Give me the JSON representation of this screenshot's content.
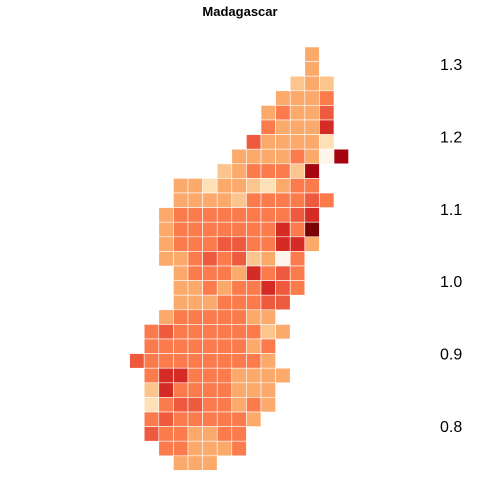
{
  "title": "Madagascar",
  "palette": [
    "#fff5eb",
    "#fee0b6",
    "#fdc58e",
    "#fca96c",
    "#fc7b4d",
    "#ed5a3e",
    "#d42b24",
    "#a5050f",
    "#7a0307"
  ],
  "legend": {
    "range": [
      0.75,
      1.35
    ],
    "ticks": [
      {
        "value": 0.8,
        "label": "0.8"
      },
      {
        "value": 0.9,
        "label": "0.9"
      },
      {
        "value": 1.0,
        "label": "1.0"
      },
      {
        "value": 1.1,
        "label": "1.1"
      },
      {
        "value": 1.2,
        "label": "1.2"
      },
      {
        "value": 1.3,
        "label": "1.3"
      }
    ]
  },
  "chart_data": {
    "type": "heatmap",
    "title": "Madagascar",
    "color_scale_range": [
      0.75,
      1.35
    ],
    "note": "rows listed north to south, each row as [first_column, level indices...]; level index k maps to palette[k]",
    "rows": [
      [
        11,
        3
      ],
      [
        11,
        3
      ],
      [
        10,
        2,
        3,
        2
      ],
      [
        9,
        3,
        3,
        3,
        4
      ],
      [
        8,
        3,
        4,
        3,
        3,
        5
      ],
      [
        8,
        4,
        3,
        3,
        3,
        6
      ],
      [
        7,
        5,
        3,
        3,
        3,
        3,
        1
      ],
      [
        6,
        3,
        3,
        3,
        3,
        4,
        3,
        0,
        7
      ],
      [
        5,
        2,
        3,
        4,
        4,
        4,
        2,
        7
      ],
      [
        2,
        3,
        3,
        1,
        3,
        3,
        2,
        1,
        3,
        4,
        4
      ],
      [
        2,
        3,
        3,
        3,
        3,
        2,
        4,
        4,
        4,
        4,
        5,
        4
      ],
      [
        1,
        3,
        4,
        4,
        4,
        4,
        4,
        4,
        4,
        4,
        5,
        6
      ],
      [
        1,
        3,
        4,
        4,
        4,
        4,
        4,
        4,
        4,
        6,
        4,
        8
      ],
      [
        1,
        3,
        4,
        4,
        4,
        5,
        5,
        4,
        4,
        6,
        6,
        3
      ],
      [
        1,
        3,
        3,
        4,
        5,
        4,
        5,
        2,
        3,
        0,
        4
      ],
      [
        2,
        3,
        4,
        4,
        4,
        3,
        6,
        4,
        5,
        4
      ],
      [
        2,
        3,
        3,
        4,
        3,
        4,
        4,
        6,
        5,
        4
      ],
      [
        2,
        3,
        3,
        3,
        4,
        4,
        4,
        5,
        5
      ],
      [
        1,
        3,
        4,
        4,
        4,
        4,
        4,
        3,
        3
      ],
      [
        0,
        4,
        5,
        4,
        4,
        4,
        4,
        4,
        4,
        2,
        3
      ],
      [
        0,
        4,
        4,
        4,
        4,
        4,
        4,
        4,
        3,
        4
      ],
      [
        -1,
        5,
        4,
        4,
        4,
        4,
        4,
        4,
        4,
        4,
        3
      ],
      [
        0,
        4,
        6,
        6,
        4,
        4,
        4,
        3,
        3,
        3,
        3
      ],
      [
        0,
        2,
        6,
        4,
        4,
        4,
        4,
        3,
        3,
        3
      ],
      [
        0,
        1,
        4,
        5,
        5,
        4,
        4,
        3,
        4,
        3
      ],
      [
        0,
        4,
        5,
        4,
        4,
        4,
        4,
        4,
        3
      ],
      [
        0,
        5,
        4,
        4,
        3,
        3,
        4,
        4
      ],
      [
        1,
        4,
        4,
        3,
        3,
        3,
        4
      ],
      [
        2,
        3,
        3,
        3
      ]
    ]
  }
}
